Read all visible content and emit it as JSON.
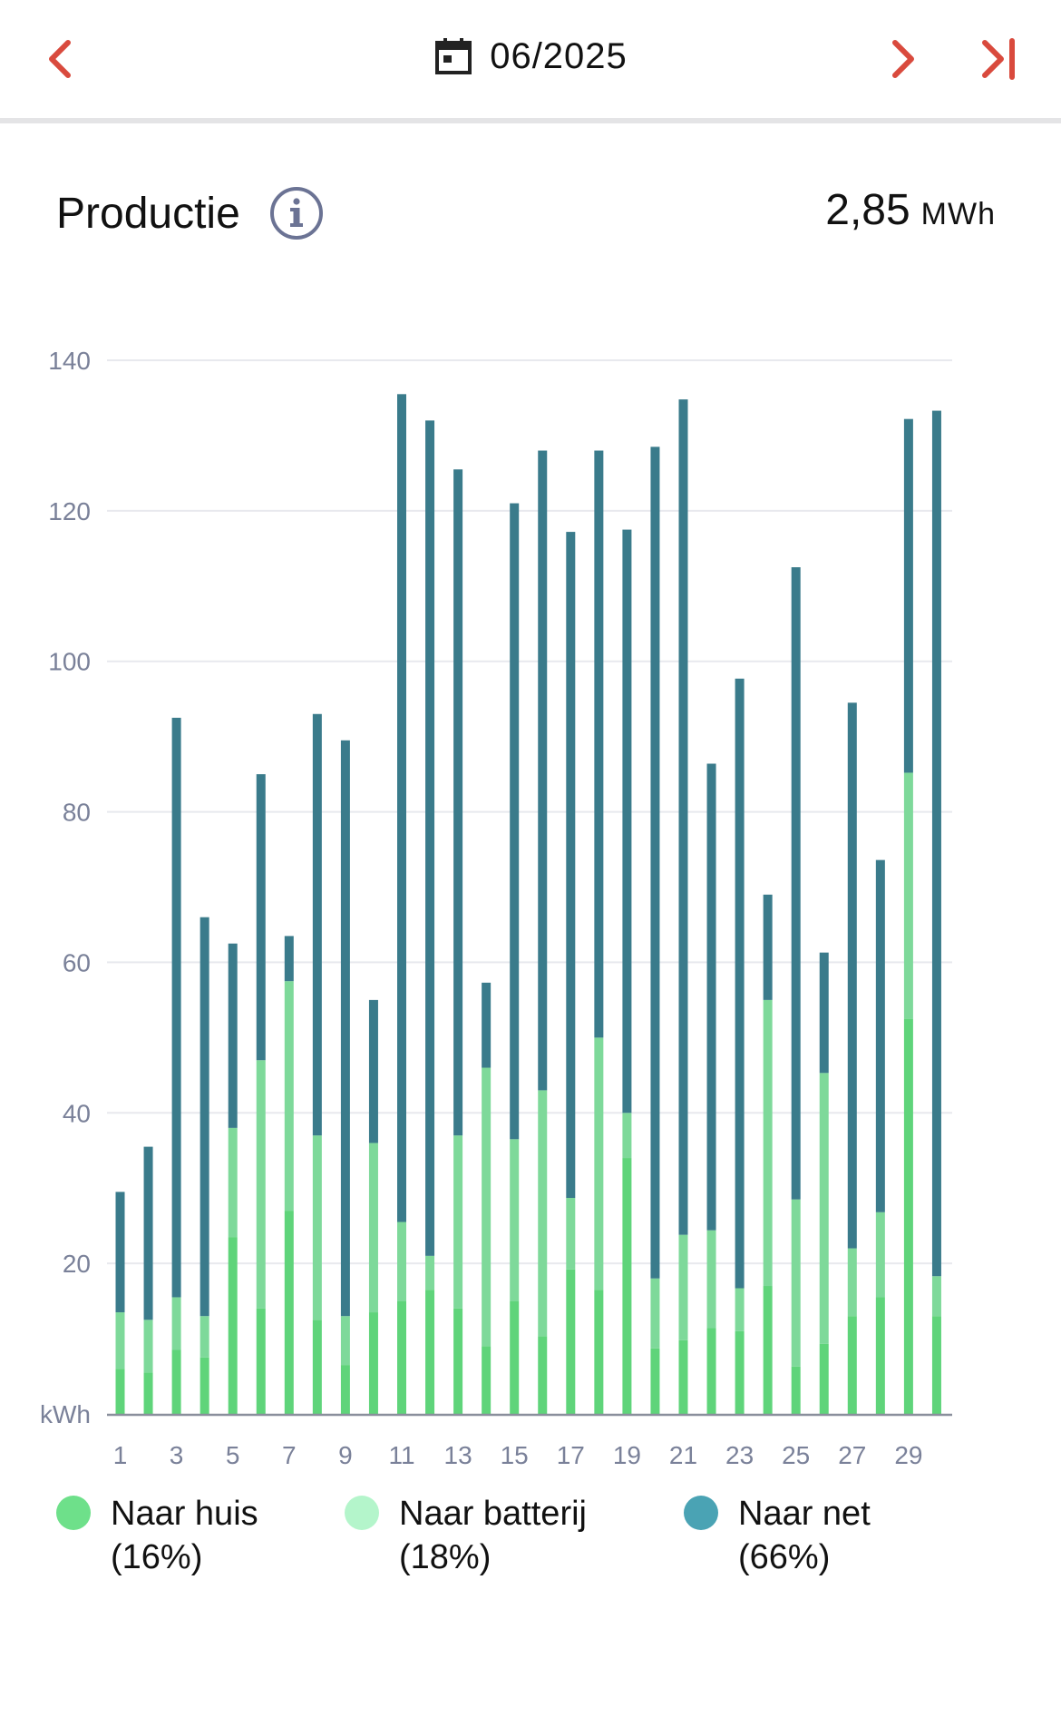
{
  "header": {
    "date": "06/2025",
    "icons": {
      "prev": "chevron-left-icon",
      "next": "chevron-right-icon",
      "last": "skip-to-end-icon",
      "calendar": "calendar-icon"
    },
    "accent": "#d94a3d"
  },
  "summary": {
    "title": "Productie",
    "info_icon": "info-icon",
    "total_value": "2,85",
    "total_unit": "MWh"
  },
  "chart_data": {
    "type": "bar",
    "stacked": true,
    "unit_label": "kWh",
    "x": [
      1,
      2,
      3,
      4,
      5,
      6,
      7,
      8,
      9,
      10,
      11,
      12,
      13,
      14,
      15,
      16,
      17,
      18,
      19,
      20,
      21,
      22,
      23,
      24,
      25,
      26,
      27,
      28,
      29,
      30
    ],
    "x_tick_labels": [
      "1",
      "3",
      "5",
      "7",
      "9",
      "11",
      "13",
      "15",
      "17",
      "19",
      "21",
      "23",
      "25",
      "27",
      "29"
    ],
    "y_ticks": [
      20,
      40,
      60,
      80,
      100,
      120,
      140
    ],
    "ylim": [
      0,
      140
    ],
    "grid": true,
    "legend_position": "bottom",
    "series": [
      {
        "name": "Naar huis",
        "share": "(16%)",
        "color": "#5fd47a",
        "legend_color": "#6ee08a",
        "values": [
          6,
          5.5,
          8.5,
          7.5,
          23.5,
          14,
          27,
          12.5,
          6.5,
          13.5,
          15,
          16.5,
          14,
          9,
          15,
          10.3,
          19.2,
          16.5,
          34,
          8.7,
          9.8,
          11.4,
          11,
          17,
          6.3,
          9.3,
          13,
          15.5,
          52.5,
          13
        ]
      },
      {
        "name": "Naar batterij",
        "share": "(18%)",
        "color": "#7ed99a",
        "legend_color": "#b4f5cb",
        "values": [
          7.5,
          7,
          7,
          5.5,
          14.5,
          33,
          30.5,
          24.5,
          6.5,
          22.5,
          10.5,
          4.5,
          23,
          37,
          21.5,
          32.7,
          9.5,
          33.5,
          6,
          9.3,
          14,
          13,
          5.7,
          38,
          22.2,
          36,
          9,
          11.3,
          32.7,
          5.3
        ]
      },
      {
        "name": "Naar net",
        "share": "(66%)",
        "color": "#3a7b8b",
        "legend_color": "#4aa3b4",
        "values": [
          16,
          23,
          77,
          53,
          24.5,
          38,
          6,
          56,
          76.5,
          19,
          110,
          111,
          88.5,
          11.3,
          84.5,
          85,
          88.5,
          78,
          77.5,
          110.5,
          111,
          62,
          81,
          14,
          84,
          16,
          72.5,
          46.8,
          47,
          115
        ]
      }
    ]
  }
}
